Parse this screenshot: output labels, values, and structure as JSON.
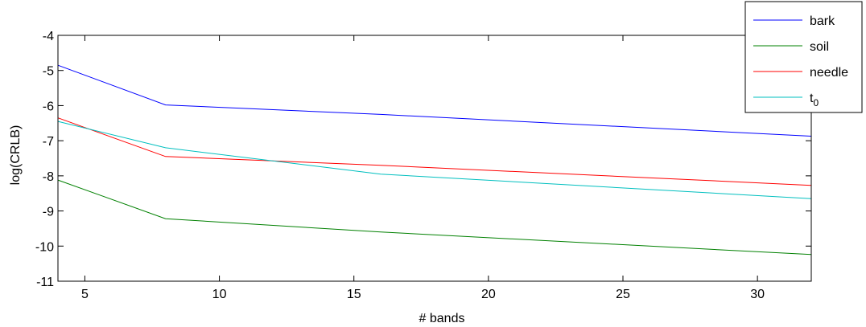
{
  "chart_data": {
    "type": "line",
    "title": "",
    "xlabel": "# bands",
    "ylabel": "log(CRLB)",
    "xlim": [
      4,
      32
    ],
    "ylim": [
      -11,
      -4
    ],
    "xticks": [
      5,
      10,
      15,
      20,
      25,
      30
    ],
    "yticks": [
      -4,
      -5,
      -6,
      -7,
      -8,
      -9,
      -10,
      -11
    ],
    "grid": false,
    "legend_position": "top-right",
    "x": [
      4,
      8,
      16,
      32
    ],
    "series": [
      {
        "name": "bark",
        "color": "#0000ff",
        "values": [
          -4.85,
          -5.98,
          -6.25,
          -6.87
        ]
      },
      {
        "name": "soil",
        "color": "#008000",
        "values": [
          -8.12,
          -9.22,
          -9.6,
          -10.24
        ]
      },
      {
        "name": "needle",
        "color": "#ff0000",
        "values": [
          -6.35,
          -7.45,
          -7.7,
          -8.27
        ]
      },
      {
        "name": "t",
        "name_subscript": "0",
        "color": "#00bfbf",
        "values": [
          -6.45,
          -7.2,
          -7.95,
          -8.65
        ]
      }
    ]
  }
}
